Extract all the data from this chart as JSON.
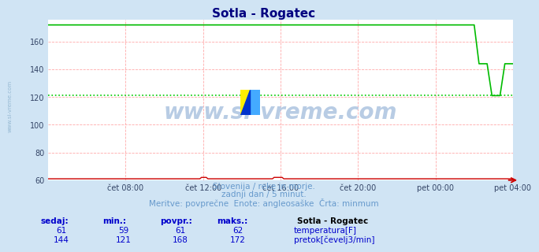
{
  "title": "Sotla - Rogatec",
  "title_color": "#000080",
  "bg_color": "#d0e4f4",
  "plot_bg_color": "#ffffff",
  "grid_color": "#ffaaaa",
  "xlim": [
    0,
    288
  ],
  "ylim": [
    60,
    176
  ],
  "yticks": [
    60,
    80,
    100,
    120,
    140,
    160
  ],
  "xtick_labels": [
    "čet 08:00",
    "čet 12:00",
    "čet 16:00",
    "čet 20:00",
    "pet 00:00",
    "pet 04:00"
  ],
  "xtick_positions": [
    48,
    96,
    144,
    192,
    240,
    288
  ],
  "temp_color": "#cc0000",
  "flow_color": "#00bb00",
  "min_line_color": "#00cc00",
  "min_flow_value": 121,
  "watermark": "www.si-vreme.com",
  "watermark_color": "#b8cce4",
  "left_label": "www.si-vreme.com",
  "left_label_color": "#8ab0cc",
  "subtitle1": "Slovenija / reke in morje.",
  "subtitle2": "zadnji dan / 5 minut.",
  "subtitle3": "Meritve: povprečne  Enote: angleosaške  Črta: minmum",
  "subtitle_color": "#6699cc",
  "headers": [
    "sedaj:",
    "min.:",
    "povpr.:",
    "maks.:"
  ],
  "station_name": "Sotla - Rogatec",
  "temp_row": [
    "61",
    "59",
    "61",
    "62"
  ],
  "flow_row": [
    "144",
    "121",
    "168",
    "172"
  ],
  "temp_label": "temperatura[F]",
  "flow_label": "pretok[čevelj3/min]",
  "table_header_color": "#0000cc",
  "table_value_color": "#0000cc",
  "station_name_color": "#000000",
  "tick_color": "#334466"
}
